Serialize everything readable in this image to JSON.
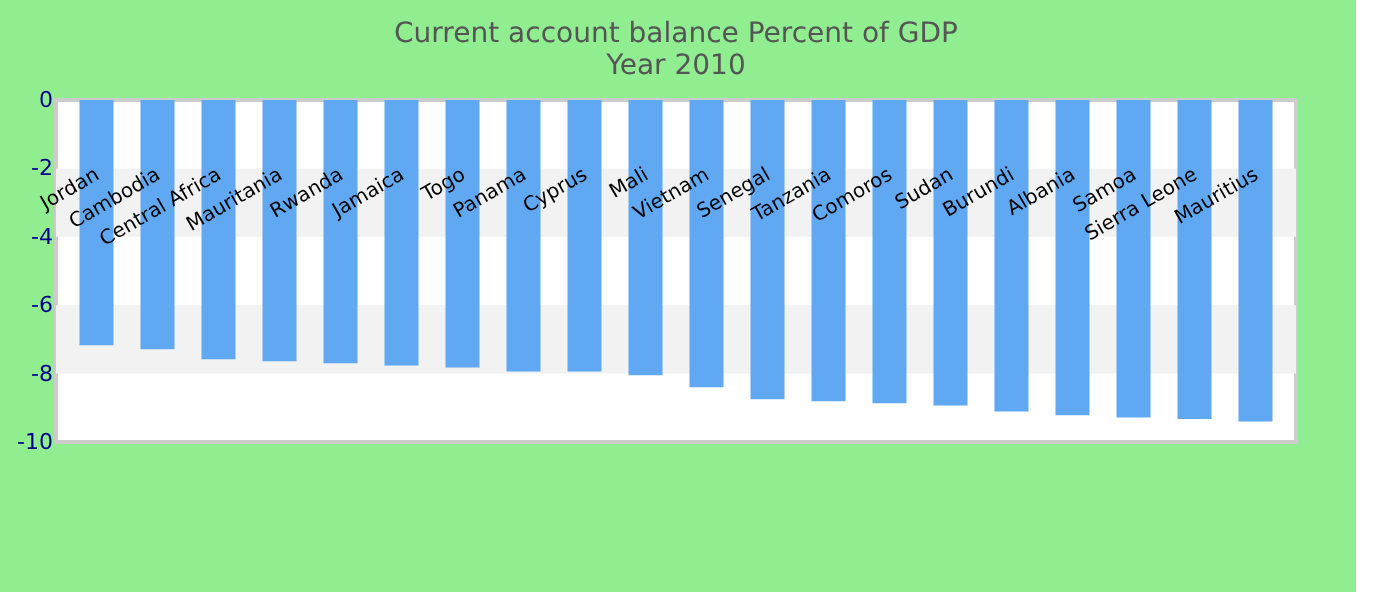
{
  "chart_data": {
    "type": "bar",
    "title": [
      "Current account balance  Percent of GDP",
      "Year 2010"
    ],
    "categories": [
      "Jordan",
      "Cambodia",
      "Central Africa",
      "Mauritania",
      "Rwanda",
      "Jamaica",
      "Togo",
      "Panama",
      "Cyprus",
      "Mali",
      "Vietnam",
      "Senegal",
      "Tanzania",
      "Comoros",
      "Sudan",
      "Burundi",
      "Albania",
      "Samoa",
      "Sierra Leone",
      "Mauritius"
    ],
    "values": [
      -7.17,
      -7.29,
      -7.58,
      -7.64,
      -7.7,
      -7.76,
      -7.82,
      -7.94,
      -7.94,
      -8.05,
      -8.4,
      -8.75,
      -8.81,
      -8.87,
      -8.93,
      -9.11,
      -9.22,
      -9.28,
      -9.33,
      -9.4
    ],
    "color": "#60a8f2",
    "ylim": [
      -10,
      0
    ],
    "yticks": [
      -10,
      -8,
      -6,
      -4,
      -2,
      0
    ],
    "bands": [
      {
        "axis": "y",
        "from": -4,
        "to": -2,
        "color": "#f2f2f2"
      },
      {
        "axis": "y",
        "from": -8,
        "to": -6,
        "color": "#f2f2f2"
      }
    ]
  }
}
